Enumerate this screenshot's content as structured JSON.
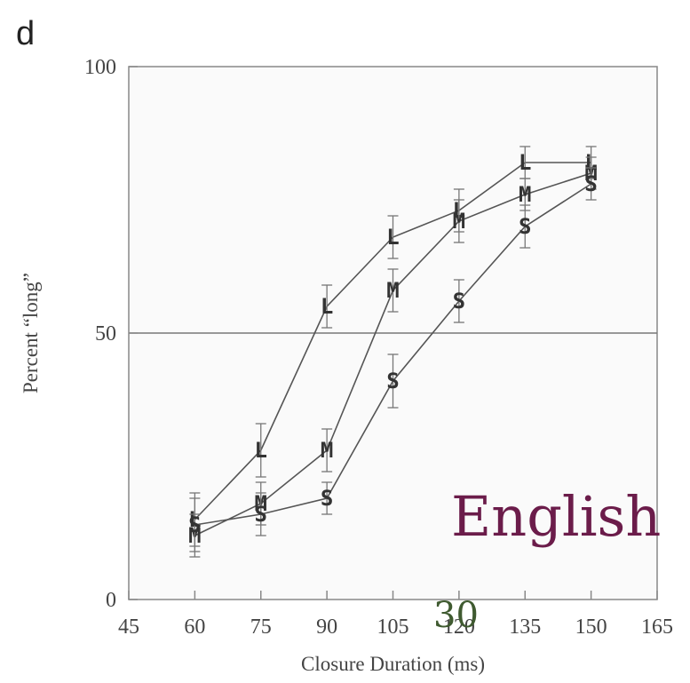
{
  "panel_label": "d",
  "overlay": {
    "language": "English",
    "page_number": "30",
    "language_color": "#6b1c4a",
    "page_number_color": "#3f5a30"
  },
  "chart_data": {
    "type": "line",
    "title": "",
    "xlabel": "Closure Duration (ms)",
    "ylabel": "Percent “long”",
    "xlim": [
      45,
      165
    ],
    "ylim": [
      0,
      100
    ],
    "xticks": [
      45,
      60,
      75,
      90,
      105,
      120,
      135,
      150,
      165
    ],
    "yticks": [
      0,
      50,
      100
    ],
    "reference_line_y": 50,
    "grid": false,
    "legend": "none (series marked by letter symbols)",
    "x": [
      60,
      75,
      90,
      105,
      120,
      135,
      150
    ],
    "series": [
      {
        "name": "L",
        "values": [
          15,
          28,
          55,
          68,
          73,
          82,
          82
        ],
        "errors": [
          5,
          5,
          4,
          4,
          4,
          3,
          3
        ]
      },
      {
        "name": "M",
        "values": [
          12,
          18,
          28,
          58,
          71,
          76,
          80
        ],
        "errors": [
          4,
          4,
          4,
          4,
          4,
          3,
          3
        ]
      },
      {
        "name": "S",
        "values": [
          14,
          16,
          19,
          41,
          56,
          70,
          78
        ],
        "errors": [
          5,
          4,
          3,
          5,
          4,
          4,
          3
        ]
      }
    ]
  }
}
